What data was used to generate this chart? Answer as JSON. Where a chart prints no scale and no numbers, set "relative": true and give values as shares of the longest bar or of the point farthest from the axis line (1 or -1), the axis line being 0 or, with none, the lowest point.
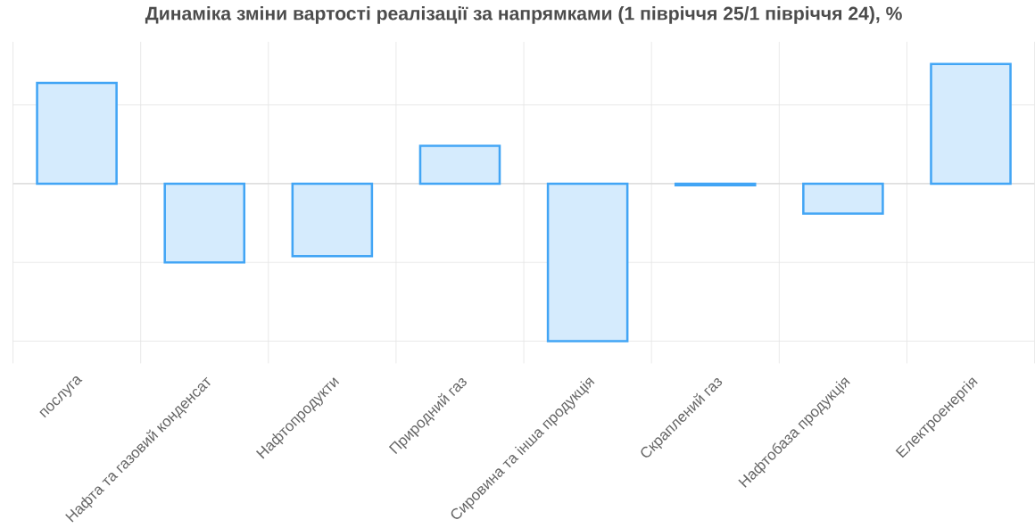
{
  "chart_data": {
    "type": "bar",
    "title": "Динаміка зміни вартості реалізації за напрямками (1 півріччя 25/1 півріччя 24), %",
    "categories": [
      "послуга",
      "Нафта та газовий конденсат",
      "Нафтопродукти",
      "Природний газ",
      "Сировина та інша продукція",
      "Скраплений газ",
      "Нафтобаза продукція",
      "Електроенергія"
    ],
    "values": [
      0.64,
      -0.5,
      -0.46,
      0.24,
      -1,
      -0.01,
      -0.19,
      0.76
    ],
    "color": "#42a5f5",
    "relative": true,
    "grid": true
  }
}
